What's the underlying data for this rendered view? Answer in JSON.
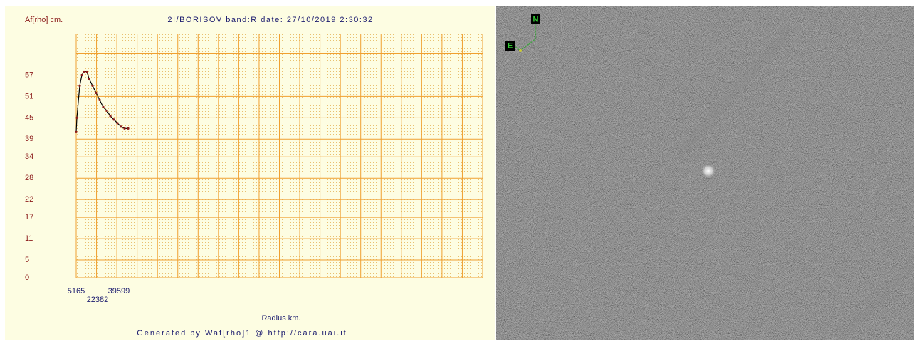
{
  "chart_data": {
    "type": "line",
    "title": "2I/BORISOV band:R date: 27/10/2019  2:30:32",
    "y_label": "Af[rho] cm.",
    "x_label": "Radius km.",
    "footer": "Generated by Waf[rho]1 @ http://cara.uai.it",
    "x": [
      5165,
      5739,
      8035,
      9757,
      11479,
      13775,
      15497,
      18367,
      21237,
      24107,
      26977,
      29847,
      32717,
      35587,
      38457,
      41327,
      44197,
      47067
    ],
    "series": [
      {
        "name": "Af[rho]",
        "color": "#8b1a1a",
        "values": [
          41,
          45,
          54,
          57,
          58,
          58,
          56,
          54,
          52,
          50,
          48,
          47,
          45.5,
          44.5,
          43.5,
          42.5,
          42,
          42
        ]
      }
    ],
    "xlim": [
      5165,
      333000
    ],
    "xticks": [
      5165,
      22382,
      39599
    ],
    "ylim": [
      0,
      63
    ],
    "yticks": [
      0,
      5,
      11,
      17,
      22,
      28,
      34,
      39,
      45,
      51,
      57
    ],
    "grid": true
  },
  "image": {
    "north_label": "N",
    "east_label": "E"
  }
}
